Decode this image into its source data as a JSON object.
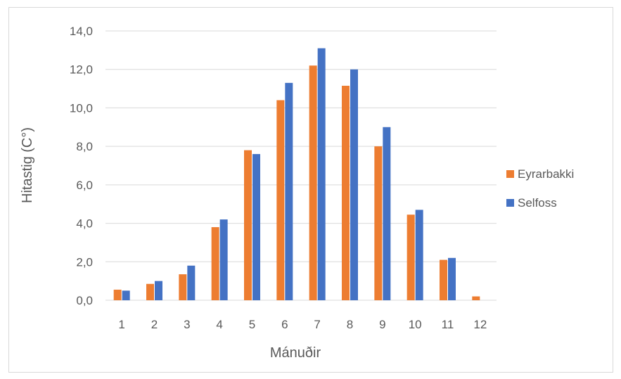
{
  "chart_data": {
    "type": "bar",
    "title": "",
    "xlabel": "Mánuðir",
    "ylabel": "Hitastig (C°)",
    "categories": [
      "1",
      "2",
      "3",
      "4",
      "5",
      "6",
      "7",
      "8",
      "9",
      "10",
      "11",
      "12"
    ],
    "ylim": [
      0,
      14
    ],
    "yticks": [
      "0,0",
      "2,0",
      "4,0",
      "6,0",
      "8,0",
      "10,0",
      "12,0",
      "14,0"
    ],
    "ytick_values": [
      0,
      2,
      4,
      6,
      8,
      10,
      12,
      14
    ],
    "grid": true,
    "legend_position": "right",
    "series": [
      {
        "name": "Eyrarbakki",
        "color": "#ED7D31",
        "values": [
          0.55,
          0.85,
          1.35,
          3.8,
          7.8,
          10.4,
          12.2,
          11.15,
          8.0,
          4.45,
          2.1,
          0.2
        ]
      },
      {
        "name": "Selfoss",
        "color": "#4472C4",
        "values": [
          0.5,
          1.0,
          1.8,
          4.2,
          7.6,
          11.3,
          13.1,
          12.0,
          9.0,
          4.7,
          2.2,
          null
        ]
      }
    ]
  }
}
